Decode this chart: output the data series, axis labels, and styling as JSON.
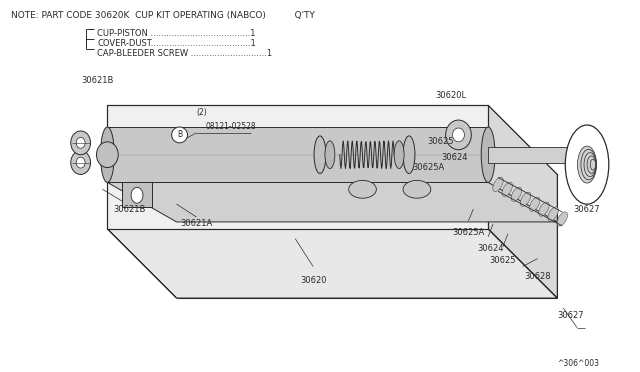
{
  "bg_color": "#f5f5f0",
  "line_color": "#2a2a2a",
  "text_color": "#2a2a2a",
  "title_note": "NOTE: PART CODE 30620K  CUP KIT OPERATING (NABCO)          Q'TY",
  "bom_items": [
    "CUP-PISTON ......................................1",
    "COVER-DUST......................................1",
    "CAP-BLEEDER SCREW .............................1"
  ],
  "diagram_note": "^306^003",
  "font_size_title": 6.5,
  "font_size_label": 6.0,
  "font_size_small": 5.5,
  "bg_white": "#ffffff"
}
